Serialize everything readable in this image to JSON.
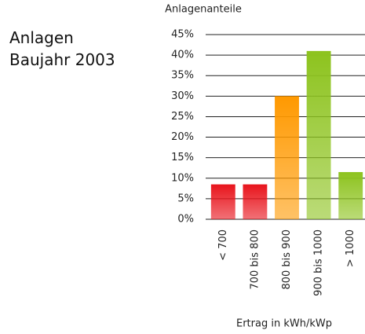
{
  "chart_data": {
    "type": "bar",
    "title": "Anlagen Baujahr 2003",
    "ylabel": "Anlagenanteile",
    "xlabel": "Ertrag in kWh/kWp",
    "categories": [
      "< 700",
      "700 bis 800",
      "800 bis 900",
      "900 bis 1000",
      "> 1000"
    ],
    "values": [
      8.5,
      8.5,
      30,
      41,
      11.5
    ],
    "colors": [
      "#e8141c",
      "#e8141c",
      "#ff9900",
      "#8dc31e",
      "#8dc31e"
    ],
    "ylim": [
      0,
      45
    ],
    "yticks": [
      {
        "value": 0,
        "label": "0%"
      },
      {
        "value": 5,
        "label": "5%"
      },
      {
        "value": 10,
        "label": "10%"
      },
      {
        "value": 15,
        "label": "15%"
      },
      {
        "value": 20,
        "label": "20%"
      },
      {
        "value": 25,
        "label": "25%"
      },
      {
        "value": 30,
        "label": "30%"
      },
      {
        "value": 35,
        "label": "35%"
      },
      {
        "value": 40,
        "label": "40%"
      },
      {
        "value": 45,
        "label": "45%"
      }
    ],
    "grid": true
  }
}
